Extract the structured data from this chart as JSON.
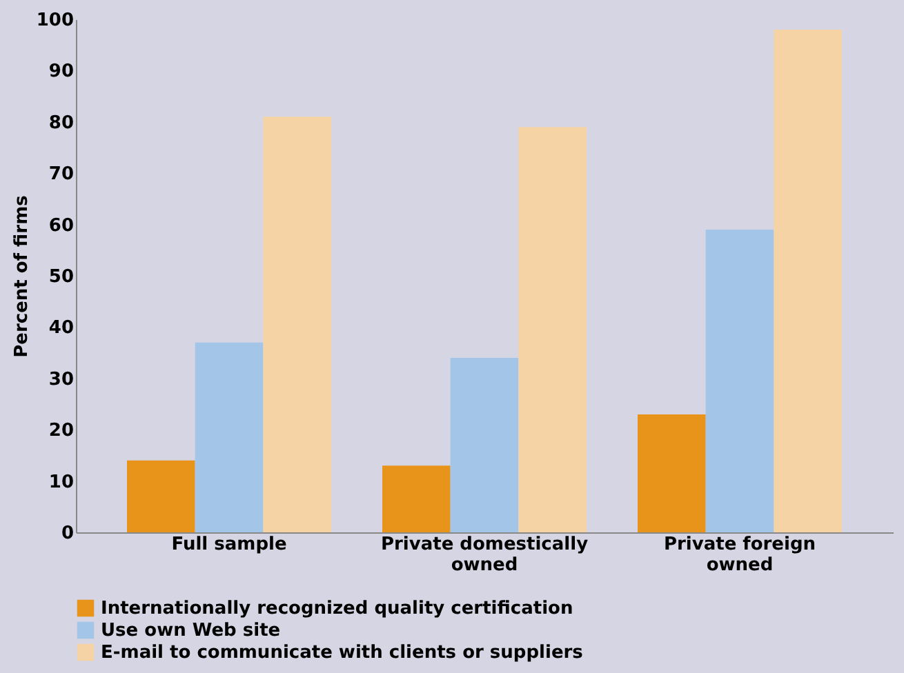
{
  "chart_data": {
    "type": "bar",
    "ylabel": "Percent of firms",
    "categories": [
      "Full sample",
      "Private domestically owned",
      "Private foreign owned"
    ],
    "series": [
      {
        "name": "Internationally recognized quality certification",
        "color": "#e8931a",
        "values": [
          14,
          13,
          23
        ]
      },
      {
        "name": "Use own Web site",
        "color": "#a3c6e8",
        "values": [
          37,
          34,
          59
        ]
      },
      {
        "name": "E-mail to communicate with clients or suppliers",
        "color": "#f5d3a4",
        "values": [
          81,
          79,
          98
        ]
      }
    ],
    "ylim": [
      0,
      100
    ],
    "yticks": [
      0,
      10,
      20,
      30,
      40,
      50,
      60,
      70,
      80,
      90,
      100
    ],
    "grid": false,
    "legend": "bottom"
  }
}
